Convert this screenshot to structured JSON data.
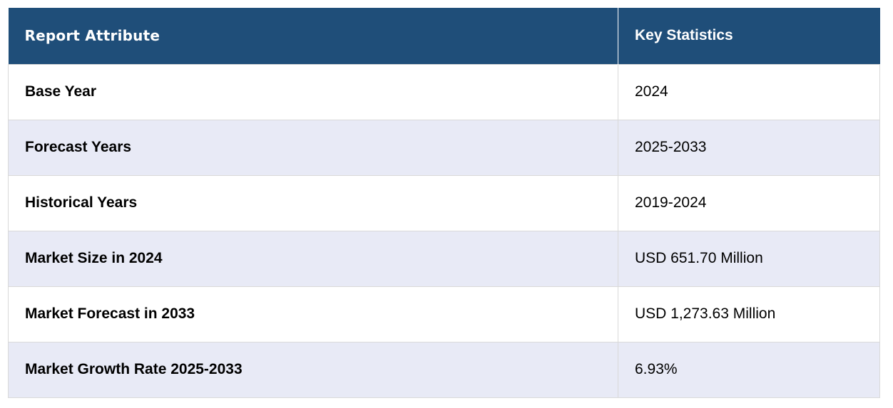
{
  "table": {
    "headers": {
      "attribute": "Report Attribute",
      "statistics": "Key Statistics"
    },
    "rows": [
      {
        "attribute": "Base Year",
        "value": "2024"
      },
      {
        "attribute": "Forecast Years",
        "value": "2025-2033"
      },
      {
        "attribute": "Historical Years",
        "value": "2019-2024"
      },
      {
        "attribute": "Market Size in 2024",
        "value": "USD 651.70 Million"
      },
      {
        "attribute": "Market Forecast in 2033",
        "value": "USD 1,273.63 Million"
      },
      {
        "attribute": "Market Growth Rate 2025-2033",
        "value": "6.93%"
      }
    ]
  },
  "colors": {
    "header_bg": "#1f4e79",
    "header_text": "#ffffff",
    "stripe_bg": "#e8eaf6",
    "border": "#d9d9d9"
  }
}
